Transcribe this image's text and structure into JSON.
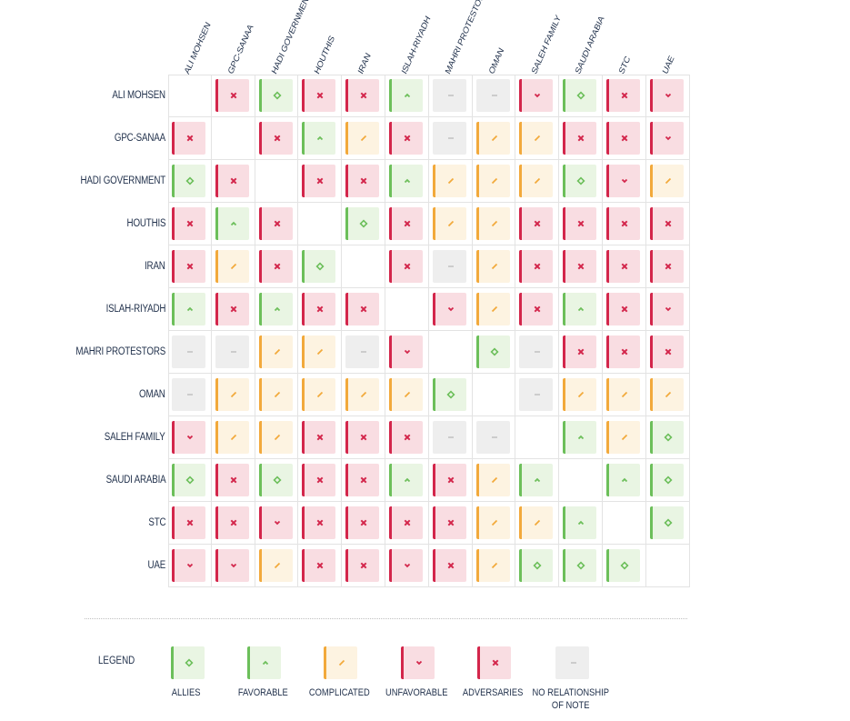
{
  "actors": [
    "ALI MOHSEN",
    "GPC-SANAA",
    "HADI GOVERNMENT",
    "HOUTHIS",
    "IRAN",
    "ISLAH-RIYADH",
    "MAHRI PROTESTORS",
    "OMAN",
    "SALEH FAMILY",
    "SAUDI ARABIA",
    "STC",
    "UAE"
  ],
  "matrix": [
    [
      "",
      "X",
      "A",
      "X",
      "X",
      "F",
      "N",
      "N",
      "U",
      "A",
      "X",
      "U"
    ],
    [
      "X",
      "",
      "X",
      "F",
      "C",
      "X",
      "N",
      "C",
      "C",
      "X",
      "X",
      "U"
    ],
    [
      "A",
      "X",
      "",
      "X",
      "X",
      "F",
      "C",
      "C",
      "C",
      "A",
      "U",
      "C"
    ],
    [
      "X",
      "F",
      "X",
      "",
      "A",
      "X",
      "C",
      "C",
      "X",
      "X",
      "X",
      "X"
    ],
    [
      "X",
      "C",
      "X",
      "A",
      "",
      "X",
      "N",
      "C",
      "X",
      "X",
      "X",
      "X"
    ],
    [
      "F",
      "X",
      "F",
      "X",
      "X",
      "",
      "U",
      "C",
      "X",
      "F",
      "X",
      "U"
    ],
    [
      "N",
      "N",
      "C",
      "C",
      "N",
      "U",
      "",
      "A",
      "N",
      "X",
      "X",
      "X"
    ],
    [
      "N",
      "C",
      "C",
      "C",
      "C",
      "C",
      "A",
      "",
      "N",
      "C",
      "C",
      "C"
    ],
    [
      "U",
      "C",
      "C",
      "X",
      "X",
      "X",
      "N",
      "N",
      "",
      "F",
      "C",
      "A"
    ],
    [
      "A",
      "X",
      "A",
      "X",
      "X",
      "F",
      "X",
      "C",
      "F",
      "",
      "F",
      "A"
    ],
    [
      "X",
      "X",
      "U",
      "X",
      "X",
      "X",
      "X",
      "C",
      "C",
      "F",
      "",
      "A"
    ],
    [
      "U",
      "U",
      "C",
      "X",
      "X",
      "U",
      "X",
      "C",
      "A",
      "A",
      "A",
      ""
    ]
  ],
  "legend": {
    "title": "LEGEND",
    "items": [
      {
        "code": "A",
        "label": "ALLIES"
      },
      {
        "code": "F",
        "label": "FAVORABLE"
      },
      {
        "code": "C",
        "label": "COMPLICATED"
      },
      {
        "code": "U",
        "label": "UNFAVORABLE"
      },
      {
        "code": "X",
        "label": "ADVERSARIES"
      },
      {
        "code": "N",
        "label": "NO RELATIONSHIP\nOF NOTE"
      }
    ]
  },
  "colors": {
    "allies": "#6cbf5a",
    "favorable": "#6cbf5a",
    "complicated": "#f2a93b",
    "unfavorable": "#d3264b",
    "adversaries": "#d3264b",
    "none": "#cccccc"
  },
  "icons": {
    "A": "diamond-icon",
    "F": "chevron-up-icon",
    "C": "slash-icon",
    "U": "chevron-down-icon",
    "X": "cross-icon",
    "N": "dash-icon"
  }
}
